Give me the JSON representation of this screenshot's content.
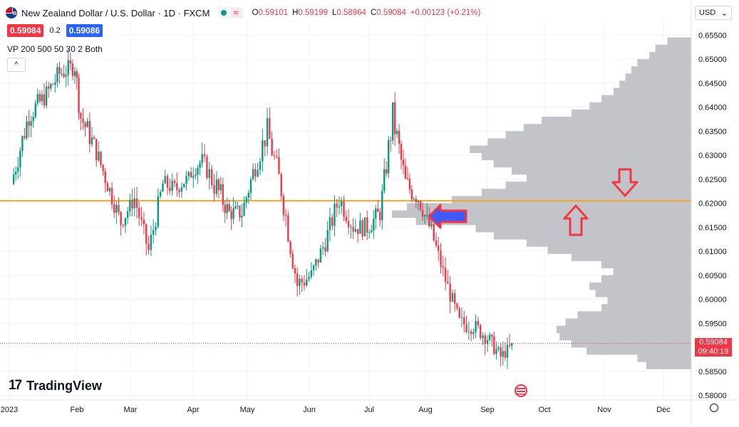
{
  "header": {
    "title": "New Zealand Dollar / U.S. Dollar · 1D · FXCM",
    "approx_symbol": "≈",
    "ohlc": [
      {
        "k": "O",
        "v": "0.59101"
      },
      {
        "k": "H",
        "v": "0.59199"
      },
      {
        "k": "L",
        "v": "0.58964"
      },
      {
        "k": "C",
        "v": "0.59084"
      },
      {
        "k": "",
        "v": "+0.00123 (+0.21%)"
      }
    ]
  },
  "trade": {
    "sell": "0.59084",
    "spread": "0.2",
    "buy": "0.59086"
  },
  "indicator_label": "VP 200 500 50 30 2 Both",
  "currency_select": "USD",
  "current_price": {
    "value": "0.59084",
    "countdown": "09:40:19"
  },
  "logo": {
    "mark": "17",
    "text": "TradingView"
  },
  "colors": {
    "up": "#089981",
    "down": "#f23645",
    "hline": "#f5a623",
    "volume_profile": "#c3c4c9",
    "arrow": "#f23645",
    "arrow_fill": "#3d5afe"
  },
  "chart_data": {
    "type": "candlestick",
    "symbol": "NZDUSD",
    "interval": "1D",
    "y_axis": {
      "range": [
        0.5775,
        0.6575
      ],
      "ticks": [
        "0.65500",
        "0.65000",
        "0.64500",
        "0.64000",
        "0.63500",
        "0.63000",
        "0.62500",
        "0.62000",
        "0.61500",
        "0.61000",
        "0.60500",
        "0.60000",
        "0.59500",
        "0.59000",
        "0.58500",
        "0.58000"
      ]
    },
    "x_axis": {
      "ticks": [
        {
          "label": "2023",
          "date": "2023-01-01"
        },
        {
          "label": "Feb",
          "date": "2023-02-01"
        },
        {
          "label": "Mar",
          "date": "2023-03-01"
        },
        {
          "label": "Apr",
          "date": "2023-04-01"
        },
        {
          "label": "May",
          "date": "2023-05-01"
        },
        {
          "label": "Jun",
          "date": "2023-06-01"
        },
        {
          "label": "Jul",
          "date": "2023-07-01"
        },
        {
          "label": "Aug",
          "date": "2023-08-01"
        },
        {
          "label": "Sep",
          "date": "2023-09-01"
        },
        {
          "label": "Oct",
          "date": "2023-10-01"
        },
        {
          "label": "Nov",
          "date": "2023-11-01"
        },
        {
          "label": "Dec",
          "date": "2023-12-01"
        }
      ]
    },
    "horizontal_line": 0.6205,
    "last_price": 0.59084,
    "series": [
      {
        "date": "2023-01-03",
        "close": 0.626,
        "low": 0.6195,
        "high": 0.6335
      },
      {
        "date": "2023-01-10",
        "close": 0.6385,
        "low": 0.626,
        "high": 0.641
      },
      {
        "date": "2023-01-17",
        "close": 0.642,
        "low": 0.634,
        "high": 0.6455
      },
      {
        "date": "2023-01-24",
        "close": 0.647,
        "low": 0.639,
        "high": 0.652
      },
      {
        "date": "2023-01-31",
        "close": 0.6485,
        "low": 0.642,
        "high": 0.6525
      },
      {
        "date": "2023-02-03",
        "close": 0.638,
        "low": 0.633,
        "high": 0.6515
      },
      {
        "date": "2023-02-10",
        "close": 0.632,
        "low": 0.627,
        "high": 0.639
      },
      {
        "date": "2023-02-17",
        "close": 0.624,
        "low": 0.621,
        "high": 0.633
      },
      {
        "date": "2023-02-24",
        "close": 0.616,
        "low": 0.614,
        "high": 0.625
      },
      {
        "date": "2023-03-03",
        "close": 0.621,
        "low": 0.615,
        "high": 0.624
      },
      {
        "date": "2023-03-10",
        "close": 0.61,
        "low": 0.6085,
        "high": 0.621
      },
      {
        "date": "2023-03-17",
        "close": 0.624,
        "low": 0.615,
        "high": 0.627
      },
      {
        "date": "2023-03-24",
        "close": 0.623,
        "low": 0.618,
        "high": 0.626
      },
      {
        "date": "2023-03-31",
        "close": 0.626,
        "low": 0.622,
        "high": 0.629
      },
      {
        "date": "2023-04-06",
        "close": 0.629,
        "low": 0.624,
        "high": 0.633
      },
      {
        "date": "2023-04-14",
        "close": 0.623,
        "low": 0.619,
        "high": 0.638
      },
      {
        "date": "2023-04-21",
        "close": 0.618,
        "low": 0.615,
        "high": 0.625
      },
      {
        "date": "2023-04-28",
        "close": 0.618,
        "low": 0.611,
        "high": 0.622
      },
      {
        "date": "2023-05-05",
        "close": 0.628,
        "low": 0.616,
        "high": 0.63
      },
      {
        "date": "2023-05-11",
        "close": 0.635,
        "low": 0.623,
        "high": 0.6385
      },
      {
        "date": "2023-05-18",
        "close": 0.623,
        "low": 0.62,
        "high": 0.637
      },
      {
        "date": "2023-05-26",
        "close": 0.603,
        "low": 0.5995,
        "high": 0.616
      },
      {
        "date": "2023-06-02",
        "close": 0.605,
        "low": 0.5985,
        "high": 0.609
      },
      {
        "date": "2023-06-09",
        "close": 0.612,
        "low": 0.603,
        "high": 0.615
      },
      {
        "date": "2023-06-16",
        "close": 0.621,
        "low": 0.61,
        "high": 0.624
      },
      {
        "date": "2023-06-23",
        "close": 0.615,
        "low": 0.612,
        "high": 0.622
      },
      {
        "date": "2023-06-30",
        "close": 0.615,
        "low": 0.609,
        "high": 0.621
      },
      {
        "date": "2023-07-07",
        "close": 0.618,
        "low": 0.611,
        "high": 0.623
      },
      {
        "date": "2023-07-14",
        "close": 0.638,
        "low": 0.621,
        "high": 0.641
      },
      {
        "date": "2023-07-21",
        "close": 0.624,
        "low": 0.621,
        "high": 0.638
      },
      {
        "date": "2023-07-28",
        "close": 0.621,
        "low": 0.617,
        "high": 0.627
      },
      {
        "date": "2023-08-04",
        "close": 0.614,
        "low": 0.61,
        "high": 0.621
      },
      {
        "date": "2023-08-11",
        "close": 0.604,
        "low": 0.602,
        "high": 0.612
      },
      {
        "date": "2023-08-18",
        "close": 0.595,
        "low": 0.5915,
        "high": 0.603
      },
      {
        "date": "2023-08-25",
        "close": 0.5945,
        "low": 0.591,
        "high": 0.601
      },
      {
        "date": "2023-09-01",
        "close": 0.592,
        "low": 0.5895,
        "high": 0.5995
      },
      {
        "date": "2023-09-08",
        "close": 0.588,
        "low": 0.586,
        "high": 0.5945
      },
      {
        "date": "2023-09-15",
        "close": 0.5908,
        "low": 0.5885,
        "high": 0.5945
      }
    ],
    "volume_profile": {
      "price_range": [
        0.5855,
        0.6545
      ],
      "relative_volume": [
        0.15,
        0.18,
        0.35,
        0.4,
        0.44,
        0.45,
        0.42,
        0.38,
        0.3,
        0.28,
        0.32,
        0.34,
        0.3,
        0.26,
        0.3,
        0.4,
        0.48,
        0.55,
        0.66,
        0.72,
        0.92,
        1.0,
        0.95,
        0.8,
        0.7,
        0.62,
        0.55,
        0.6,
        0.66,
        0.7,
        0.74,
        0.68,
        0.62,
        0.56,
        0.5,
        0.4,
        0.34,
        0.3,
        0.26,
        0.24,
        0.22,
        0.2,
        0.18,
        0.14,
        0.12,
        0.08
      ]
    }
  }
}
